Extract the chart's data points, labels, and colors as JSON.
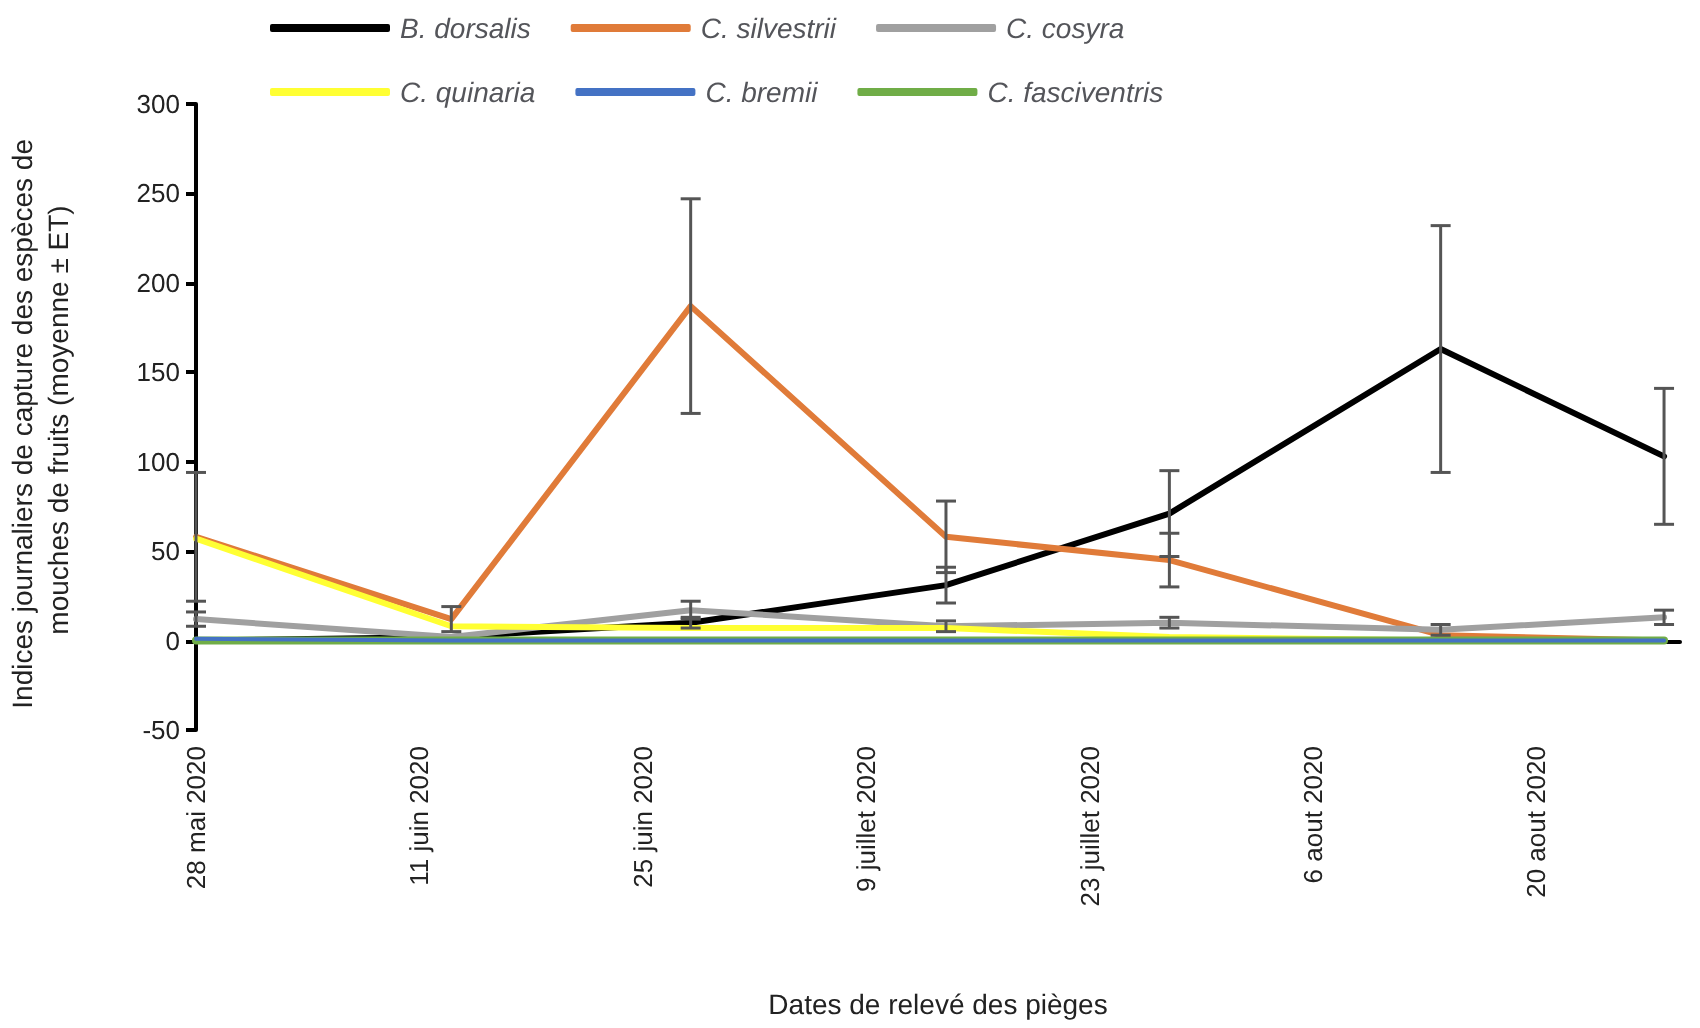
{
  "chart_data": {
    "type": "line",
    "xlabel": "Dates de relevé des pièges",
    "ylabel": "Indices journaliers de capture des espèces de mouches de fruits (moyenne ± ET)",
    "x": [
      "2020-05-28",
      "2020-06-13",
      "2020-06-28",
      "2020-07-14",
      "2020-07-28",
      "2020-08-14",
      "2020-08-28"
    ],
    "xlim": [
      "2020-05-28",
      "2020-08-29"
    ],
    "xticks": [
      {
        "value": "2020-05-28",
        "label": "28 mai 2020"
      },
      {
        "value": "2020-06-11",
        "label": "11 juin 2020"
      },
      {
        "value": "2020-06-25",
        "label": "25 juin 2020"
      },
      {
        "value": "2020-07-09",
        "label": "9 juillet 2020"
      },
      {
        "value": "2020-07-23",
        "label": "23 juillet 2020"
      },
      {
        "value": "2020-08-06",
        "label": "6 aout 2020"
      },
      {
        "value": "2020-08-20",
        "label": "20 aout 2020"
      }
    ],
    "ylim": [
      -50,
      300
    ],
    "yticks": [
      -50,
      0,
      50,
      100,
      150,
      200,
      250,
      300
    ],
    "series": [
      {
        "name": "B. dorsalis",
        "color": "#000000",
        "values": [
          0,
          2,
          10,
          31,
          71,
          163,
          103
        ],
        "errors": [
          null,
          null,
          3,
          10,
          24,
          69,
          38
        ]
      },
      {
        "name": "C. silvestrii",
        "color": "#e07b39",
        "values": [
          58,
          12,
          187,
          58,
          45,
          3,
          0
        ],
        "errors": [
          36,
          7,
          60,
          20,
          15,
          null,
          null
        ]
      },
      {
        "name": "C. cosyra",
        "color": "#a0a0a0",
        "values": [
          12,
          2,
          17,
          8,
          10,
          6,
          13
        ],
        "errors": [
          4,
          null,
          5,
          3,
          3,
          3,
          4
        ]
      },
      {
        "name": "C. quinaria",
        "color": "#ffff33",
        "values": [
          57,
          8,
          7,
          7,
          2,
          0,
          0
        ]
      },
      {
        "name": "C. bremii",
        "color": "#4472c4",
        "values": [
          1,
          0,
          0,
          0,
          0,
          0,
          0
        ]
      },
      {
        "name": "C. fasciventris",
        "color": "#70ad47",
        "values": [
          0,
          0,
          0,
          0,
          0,
          0,
          0
        ]
      }
    ],
    "legend": "top",
    "grid": false,
    "marker": "none",
    "line_style": "solid"
  }
}
